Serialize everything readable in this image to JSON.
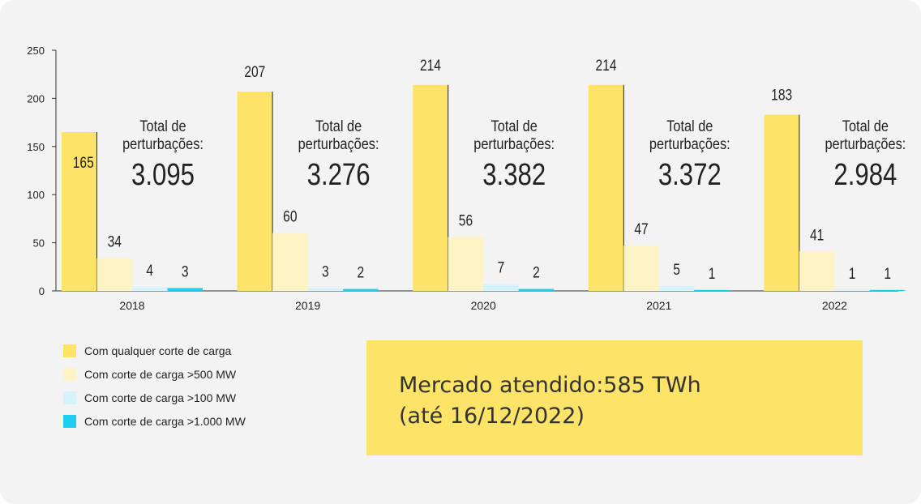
{
  "chart_data": {
    "type": "bar",
    "categories": [
      "2018",
      "2019",
      "2020",
      "2021",
      "2022"
    ],
    "series": [
      {
        "name": "Com qualquer corte de carga",
        "color": "#fde468",
        "values": [
          165,
          207,
          214,
          214,
          183
        ]
      },
      {
        "name": "Com corte de carga >500 MW",
        "color": "#fef3c4",
        "values": [
          34,
          60,
          56,
          47,
          41
        ]
      },
      {
        "name": "Com corte de carga >100 MW",
        "color": "#d4f3fd",
        "values": [
          4,
          3,
          7,
          5,
          1
        ]
      },
      {
        "name": "Com corte de carga >1.000 MW",
        "color": "#1ed0f0",
        "values": [
          3,
          2,
          2,
          1,
          1
        ]
      }
    ],
    "ylim": [
      0,
      250
    ],
    "yticks": [
      "0",
      "50",
      "100",
      "150",
      "200",
      "250"
    ],
    "ytick_values": [
      0,
      50,
      100,
      150,
      200,
      250
    ],
    "total_label": [
      "Total de",
      "perturbações:"
    ],
    "totals": [
      "3.095",
      "3.276",
      "3.382",
      "3.372",
      "2.984"
    ],
    "grid": false,
    "legend_position": "bottom-left"
  },
  "market": {
    "line1": "Mercado atendido:585 TWh",
    "line2": "(até 16/12/2022)"
  }
}
